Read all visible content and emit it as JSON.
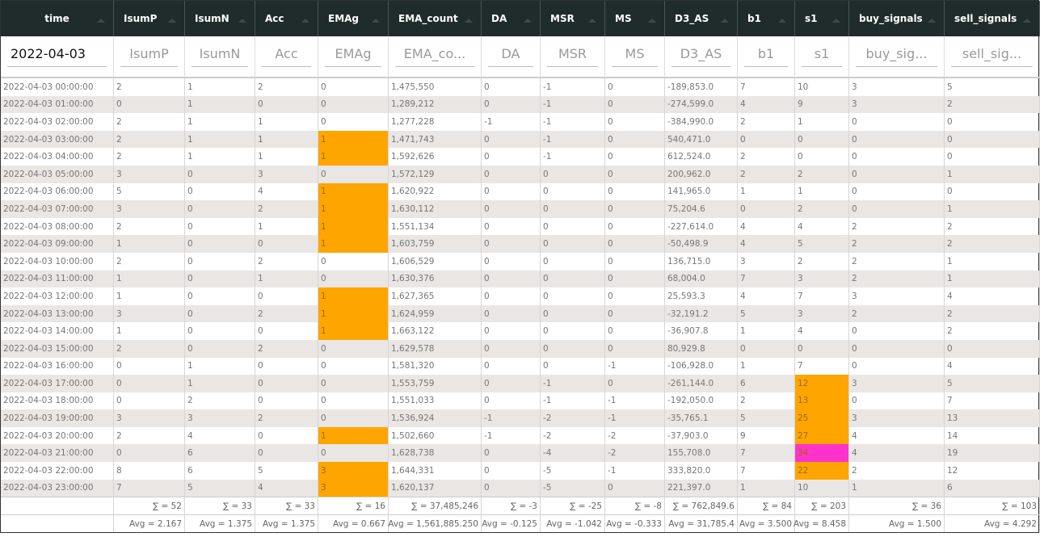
{
  "table": {
    "columns": [
      "time",
      "IsumP",
      "IsumN",
      "Acc",
      "EMAg",
      "EMA_count",
      "DA",
      "MSR",
      "MS",
      "D3_AS",
      "b1",
      "s1",
      "buy_signals",
      "sell_signals"
    ],
    "filters": [
      "2022-04-03",
      "IsumP",
      "IsumN",
      "Acc",
      "EMAg",
      "EMA_co...",
      "DA",
      "MSR",
      "MS",
      "D3_AS",
      "b1",
      "s1",
      "buy_sig...",
      "sell_sig..."
    ],
    "rows": [
      [
        "2022-04-03 00:00:00",
        "2",
        "1",
        "2",
        "0",
        "1,475,550",
        "0",
        "-1",
        "0",
        "-189,853.0",
        "7",
        "10",
        "3",
        "5"
      ],
      [
        "2022-04-03 01:00:00",
        "0",
        "1",
        "0",
        "0",
        "1,289,212",
        "0",
        "-1",
        "0",
        "-274,599.0",
        "4",
        "9",
        "3",
        "2"
      ],
      [
        "2022-04-03 02:00:00",
        "2",
        "1",
        "1",
        "0",
        "1,277,228",
        "-1",
        "-1",
        "0",
        "-384,990.0",
        "2",
        "1",
        "0",
        "0"
      ],
      [
        "2022-04-03 03:00:00",
        "2",
        "1",
        "1",
        {
          "text": "1",
          "color": "#ffa500"
        },
        "1,471,743",
        "0",
        "-1",
        "0",
        "540,471.0",
        "0",
        "0",
        "0",
        "0"
      ],
      [
        "2022-04-03 04:00:00",
        "2",
        "1",
        "1",
        {
          "text": "1",
          "color": "#ffa500"
        },
        "1,592,626",
        "0",
        "-1",
        "0",
        "612,524.0",
        "2",
        "0",
        "0",
        "0"
      ],
      [
        "2022-04-03 05:00:00",
        "3",
        "0",
        "3",
        "0",
        "1,572,129",
        "0",
        "0",
        "0",
        "200,962.0",
        "2",
        "2",
        "0",
        "1"
      ],
      [
        "2022-04-03 06:00:00",
        "5",
        "0",
        "4",
        {
          "text": "1",
          "color": "#ffa500"
        },
        "1,620,922",
        "0",
        "0",
        "0",
        "141,965.0",
        "1",
        "1",
        "0",
        "0"
      ],
      [
        "2022-04-03 07:00:00",
        "3",
        "0",
        "2",
        {
          "text": "1",
          "color": "#ffa500"
        },
        "1,630,112",
        "0",
        "0",
        "0",
        "75,204.6",
        "0",
        "2",
        "0",
        "1"
      ],
      [
        "2022-04-03 08:00:00",
        "2",
        "0",
        "1",
        {
          "text": "1",
          "color": "#ffa500"
        },
        "1,551,134",
        "0",
        "0",
        "0",
        "-227,614.0",
        "4",
        "4",
        "2",
        "2"
      ],
      [
        "2022-04-03 09:00:00",
        "1",
        "0",
        "0",
        {
          "text": "1",
          "color": "#ffa500"
        },
        "1,603,759",
        "0",
        "0",
        "0",
        "-50,498.9",
        "4",
        "5",
        "2",
        "2"
      ],
      [
        "2022-04-03 10:00:00",
        "2",
        "0",
        "2",
        "0",
        "1,606,529",
        "0",
        "0",
        "0",
        "136,715.0",
        "3",
        "2",
        "2",
        "1"
      ],
      [
        "2022-04-03 11:00:00",
        "1",
        "0",
        "1",
        "0",
        "1,630,376",
        "0",
        "0",
        "0",
        "68,004.0",
        "7",
        "3",
        "2",
        "1"
      ],
      [
        "2022-04-03 12:00:00",
        "1",
        "0",
        "0",
        {
          "text": "1",
          "color": "#ffa500"
        },
        "1,627,365",
        "0",
        "0",
        "0",
        "25,593.3",
        "4",
        "7",
        "3",
        "4"
      ],
      [
        "2022-04-03 13:00:00",
        "3",
        "0",
        "2",
        {
          "text": "1",
          "color": "#ffa500"
        },
        "1,624,959",
        "0",
        "0",
        "0",
        "-32,191.2",
        "5",
        "3",
        "2",
        "2"
      ],
      [
        "2022-04-03 14:00:00",
        "1",
        "0",
        "0",
        {
          "text": "1",
          "color": "#ffa500"
        },
        "1,663,122",
        "0",
        "0",
        "0",
        "-36,907.8",
        "1",
        "4",
        "0",
        "2"
      ],
      [
        "2022-04-03 15:00:00",
        "2",
        "0",
        "2",
        "0",
        "1,629,578",
        "0",
        "0",
        "0",
        "80,929.8",
        "0",
        "0",
        "0",
        "0"
      ],
      [
        "2022-04-03 16:00:00",
        "0",
        "1",
        "0",
        "0",
        "1,581,320",
        "0",
        "0",
        "-1",
        "-106,928.0",
        "1",
        "7",
        "0",
        "4"
      ],
      [
        "2022-04-03 17:00:00",
        "0",
        "1",
        "0",
        "0",
        "1,553,759",
        "0",
        "-1",
        "0",
        "-261,144.0",
        "6",
        {
          "text": "12",
          "color": "#ffa500"
        },
        "3",
        "5"
      ],
      [
        "2022-04-03 18:00:00",
        "0",
        "2",
        "0",
        "0",
        "1,551,033",
        "0",
        "-1",
        "-1",
        "-192,050.0",
        "2",
        {
          "text": "13",
          "color": "#ffa500"
        },
        "0",
        "7"
      ],
      [
        "2022-04-03 19:00:00",
        "3",
        "3",
        "2",
        "0",
        "1,536,924",
        "-1",
        "-2",
        "-1",
        "-35,765.1",
        "5",
        {
          "text": "25",
          "color": "#ffa500"
        },
        "3",
        "13"
      ],
      [
        "2022-04-03 20:00:00",
        "2",
        "4",
        "0",
        {
          "text": "1",
          "color": "#ffa500"
        },
        "1,502,660",
        "-1",
        "-2",
        "-2",
        "-37,903.0",
        "9",
        {
          "text": "27",
          "color": "#ffa500"
        },
        "4",
        "14"
      ],
      [
        "2022-04-03 21:00:00",
        "0",
        "6",
        "0",
        "0",
        "1,628,738",
        "0",
        "-4",
        "-2",
        "155,708.0",
        "7",
        {
          "text": "34",
          "color": "#ff33cc"
        },
        "4",
        "19"
      ],
      [
        "2022-04-03 22:00:00",
        "8",
        "6",
        "5",
        {
          "text": "3",
          "color": "#ffa500"
        },
        "1,644,331",
        "0",
        "-5",
        "-1",
        "333,820.0",
        "7",
        {
          "text": "22",
          "color": "#ffa500"
        },
        "2",
        "12"
      ],
      [
        "2022-04-03 23:00:00",
        "7",
        "5",
        "4",
        {
          "text": "3",
          "color": "#ffa500"
        },
        "1,620,137",
        "0",
        "-5",
        "0",
        "221,397.0",
        "1",
        "10",
        "1",
        "6"
      ]
    ],
    "sums": [
      "∑ = 52",
      "∑ = 33",
      "∑ = 33",
      "∑ = 16",
      "∑ = 37,485,246",
      "∑ = -3",
      "∑ = -25",
      "∑ = -8",
      "∑ = 762,849.6",
      "∑ = 84",
      "∑ = 203",
      "∑ = 36",
      "∑ = 103"
    ],
    "averages": [
      "Avg = 2.167",
      "Avg = 1.375",
      "Avg = 1.375",
      "Avg = 0.667",
      "Avg = 1,561,885.250",
      "Avg = -0.125",
      "Avg = -1.042",
      "Avg = -0.333",
      "Avg = 31,785.4",
      "Avg = 3.500",
      "Avg = 8.458",
      "Avg = 1.500",
      "Avg = 4.292"
    ]
  }
}
